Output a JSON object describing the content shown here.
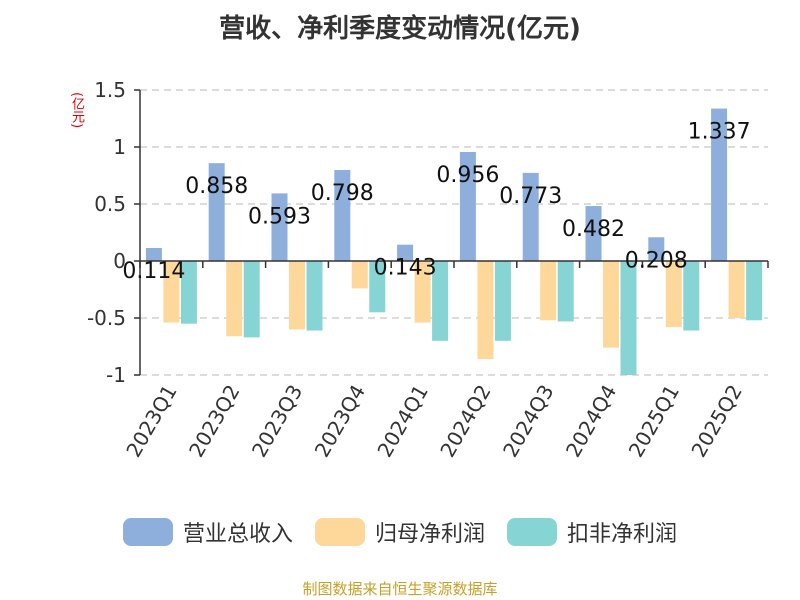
{
  "page": {
    "title": "营收、净利季度变动情况(亿元)",
    "unit_label": "(亿元)",
    "source": "制图数据来自恒生聚源数据库"
  },
  "chart_data": {
    "type": "bar",
    "title": "营收、净利季度变动情况(亿元)",
    "ylabel": "(亿元)",
    "ylim": [
      -1,
      1.5
    ],
    "yticks": [
      -1,
      -0.5,
      0,
      0.5,
      1,
      1.5
    ],
    "ytick_labels": [
      "-1",
      "-0.5",
      "0",
      "0.5",
      "1",
      "1.5"
    ],
    "grid": true,
    "legend_position": "bottom",
    "categories": [
      "2023Q1",
      "2023Q2",
      "2023Q3",
      "2023Q4",
      "2024Q1",
      "2024Q2",
      "2024Q3",
      "2024Q4",
      "2025Q1",
      "2025Q2"
    ],
    "series": [
      {
        "name": "营业总收入",
        "color": "#8eafdb",
        "values": [
          0.114,
          0.858,
          0.593,
          0.798,
          0.143,
          0.956,
          0.773,
          0.482,
          0.208,
          1.337
        ],
        "labels": [
          "0.114",
          "0.858",
          "0.593",
          "0.798",
          "0.143",
          "0.956",
          "0.773",
          "0.482",
          "0.208",
          "1.337"
        ]
      },
      {
        "name": "归母净利润",
        "color": "#fdd89a",
        "values": [
          -0.54,
          -0.66,
          -0.6,
          -0.24,
          -0.54,
          -0.86,
          -0.52,
          -0.76,
          -0.58,
          -0.5
        ]
      },
      {
        "name": "扣非净利润",
        "color": "#86d4d4",
        "values": [
          -0.55,
          -0.67,
          -0.61,
          -0.45,
          -0.7,
          -0.7,
          -0.53,
          -1.0,
          -0.61,
          -0.52
        ]
      }
    ]
  }
}
